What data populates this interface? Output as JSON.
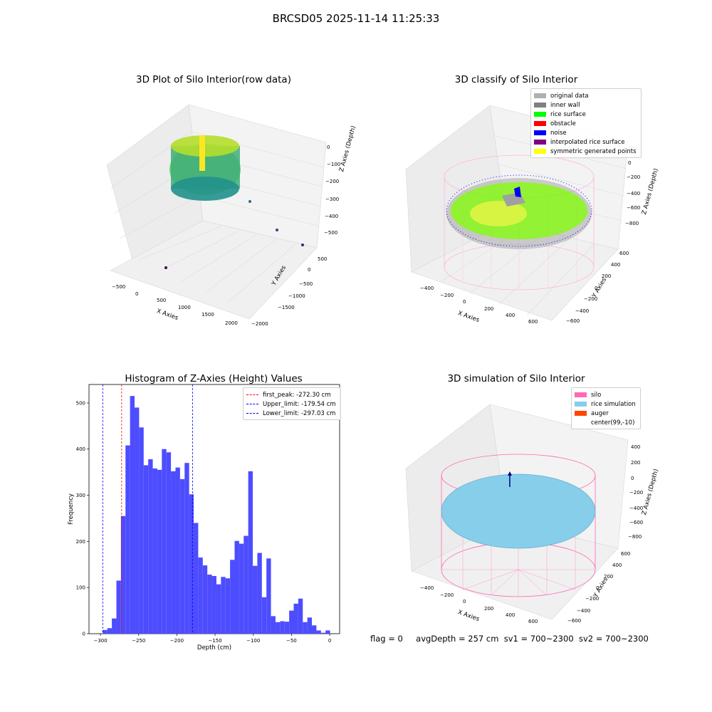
{
  "figure": {
    "suptitle": "BRCSD05 2025-11-14 11:25:33"
  },
  "panels": {
    "raw": {
      "title": "3D Plot of Silo Interior(row data)",
      "xlabel": "X Axies",
      "ylabel": "Y Axies",
      "zlabel": "Z Axies (Depth)",
      "xticks": [
        "−500",
        "0",
        "500",
        "1000",
        "1500",
        "2000"
      ],
      "yticks": [
        "500",
        "0",
        "−500",
        "−1000",
        "−1500",
        "−2000"
      ],
      "zticks": [
        "0",
        "−100",
        "−200",
        "−300",
        "−400",
        "−500"
      ]
    },
    "classify": {
      "title": "3D classify of Silo Interior",
      "xlabel": "X Axies",
      "ylabel": "Y Axies",
      "zlabel": "Z Axies (Depth)",
      "xticks": [
        "−400",
        "−200",
        "0",
        "200",
        "400",
        "600"
      ],
      "yticks": [
        "600",
        "400",
        "200",
        "0",
        "−200",
        "−400",
        "−600"
      ],
      "zticks": [
        "200",
        "0",
        "−200",
        "−400",
        "−600",
        "−800"
      ],
      "legend": [
        {
          "label": "original data",
          "color": "#b0b0b0"
        },
        {
          "label": "inner wall",
          "color": "#808080"
        },
        {
          "label": "rice surface",
          "color": "#00ff00"
        },
        {
          "label": "obstacle",
          "color": "#ff0000"
        },
        {
          "label": "noise",
          "color": "#0000ff"
        },
        {
          "label": "interpolated rice surface",
          "color": "#800080"
        },
        {
          "label": "symmetric generated points",
          "color": "#ffff00"
        }
      ]
    },
    "simulation": {
      "title": "3D simulation of Silo Interior",
      "xlabel": "X Axies",
      "ylabel": "Y Axies",
      "zlabel": "Z Axies (Depth)",
      "xticks": [
        "−400",
        "−200",
        "0",
        "200",
        "400",
        "600"
      ],
      "yticks": [
        "600",
        "400",
        "200",
        "0",
        "−200",
        "−400",
        "−600"
      ],
      "zticks": [
        "400",
        "200",
        "0",
        "−200",
        "−400",
        "−600",
        "−800"
      ],
      "legend": [
        {
          "label": "silo",
          "color": "#ff69b4"
        },
        {
          "label": "rice simulation",
          "color": "#87ceeb"
        },
        {
          "label": "auger",
          "color": "#ff4500"
        },
        {
          "label": "center(99,-10)",
          "color": "#ffffff"
        }
      ]
    }
  },
  "chart_data": {
    "type": "bar",
    "title": "Histogram of Z-Axies (Height) Values",
    "xlabel": "Depth (cm)",
    "ylabel": "Frequency",
    "xlim": [
      -315,
      13
    ],
    "ylim": [
      0,
      540
    ],
    "xticks": [
      -300,
      -250,
      -200,
      -150,
      -100,
      -50,
      0
    ],
    "yticks": [
      0,
      100,
      200,
      300,
      400,
      500
    ],
    "bar_color": "#4d4dff",
    "bin_start": -297.0,
    "bin_width": 5.95,
    "values": [
      8,
      12,
      33,
      115,
      255,
      408,
      515,
      490,
      447,
      365,
      378,
      358,
      355,
      400,
      393,
      352,
      360,
      335,
      370,
      302,
      240,
      165,
      148,
      128,
      125,
      107,
      123,
      120,
      160,
      201,
      195,
      212,
      352,
      147,
      175,
      79,
      163,
      38,
      25,
      27,
      26,
      50,
      65,
      76,
      25,
      35,
      18,
      7,
      2,
      7
    ],
    "vlines": [
      {
        "label": "first_peak: -272.30 cm",
        "x": -272.3,
        "color": "#ff0000"
      },
      {
        "label": "Upper_limit: -179.54 cm",
        "x": -179.54,
        "color": "#0000ff"
      },
      {
        "label": "Lower_limit: -297.03 cm",
        "x": -297.03,
        "color": "#0000ff"
      }
    ],
    "legend_position": "top-right"
  },
  "status": {
    "flag": "flag = 0",
    "avg_depth": "avgDepth = 257 cm",
    "sv1": "sv1 = 700~2300",
    "sv2": "sv2 = 700~2300"
  }
}
